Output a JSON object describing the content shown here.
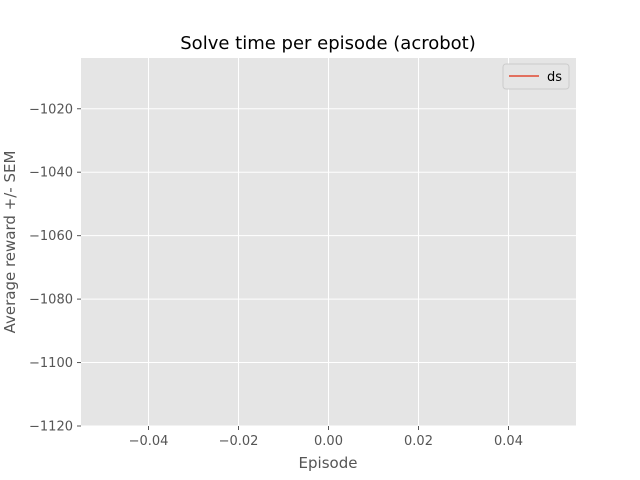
{
  "chart_data": {
    "type": "line",
    "title": "Solve time per episode (acrobot)",
    "xlabel": "Episode",
    "ylabel": "Average reward +/- SEM",
    "xlim": [
      -0.055,
      0.055
    ],
    "ylim": [
      -1120,
      -1004
    ],
    "xticks": [
      -0.04,
      -0.02,
      0.0,
      0.02,
      0.04
    ],
    "xtick_labels": [
      "−0.04",
      "−0.02",
      "0.00",
      "0.02",
      "0.04"
    ],
    "yticks": [
      -1120,
      -1100,
      -1080,
      -1060,
      -1040,
      -1020
    ],
    "ytick_labels": [
      "−1120",
      "−1100",
      "−1080",
      "−1060",
      "−1040",
      "−1020"
    ],
    "grid": true,
    "legend_position": "top-right",
    "series": [
      {
        "name": "ds",
        "color": "#e24a33",
        "x": [],
        "y": []
      }
    ]
  },
  "colors": {
    "plot_background": "#e5e5e5",
    "grid": "#ffffff",
    "tick_text": "#555555",
    "series_ds": "#e24a33"
  }
}
